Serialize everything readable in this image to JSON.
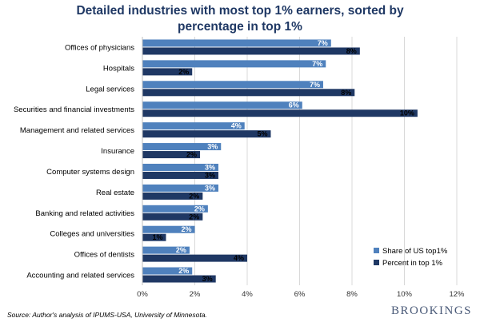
{
  "chart_data": {
    "type": "bar",
    "orientation": "horizontal",
    "title_lines": [
      "Detailed industries with most top 1% earners, sorted by",
      "percentage in top 1%"
    ],
    "categories": [
      "Offices of physicians",
      "Hospitals",
      "Legal services",
      "Securities and financial investments",
      "Management and related services",
      "Insurance",
      "Computer systems design",
      "Real estate",
      "Banking and related activities",
      "Colleges and universities",
      "Offices of dentists",
      "Accounting and related services"
    ],
    "series": [
      {
        "name": "Share of US top1%",
        "color": "#4f81bd",
        "values": [
          7.2,
          7.0,
          6.9,
          6.1,
          3.9,
          3.0,
          2.9,
          2.9,
          2.5,
          2.0,
          1.8,
          1.9
        ],
        "labels": [
          "7%",
          "7%",
          "7%",
          "6%",
          "4%",
          "3%",
          "3%",
          "3%",
          "2%",
          "2%",
          "2%",
          "2%"
        ]
      },
      {
        "name": "Percent in top 1%",
        "color": "#1f3864",
        "values": [
          8.3,
          1.9,
          8.1,
          10.5,
          4.9,
          2.2,
          2.9,
          2.3,
          2.3,
          0.9,
          4.0,
          2.8
        ],
        "labels": [
          "8%",
          "2%",
          "8%",
          "10%",
          "5%",
          "2%",
          "3%",
          "2%",
          "2%",
          "1%",
          "4%",
          "3%"
        ]
      }
    ],
    "xlim": [
      0,
      12
    ],
    "xticks": [
      "0%",
      "2%",
      "4%",
      "6%",
      "8%",
      "10%",
      "12%"
    ],
    "grid": true,
    "legend_position": "bottom-right"
  },
  "source": "Source: Author's analysis of IPUMS-USA, University of Minnesota.",
  "logo_text": "BROOKINGS"
}
